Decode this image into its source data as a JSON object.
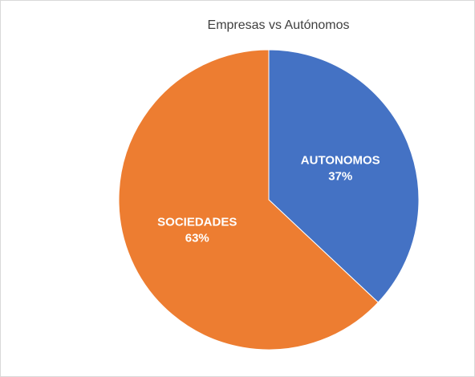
{
  "chart_data": {
    "type": "pie",
    "title": "Empresas vs Autónomos",
    "categories": [
      "AUTONOMOS",
      "SOCIEDADES"
    ],
    "values": [
      37,
      63
    ],
    "value_labels": [
      "37%",
      "63%"
    ],
    "colors": [
      "#4472c4",
      "#ed7d31"
    ]
  }
}
